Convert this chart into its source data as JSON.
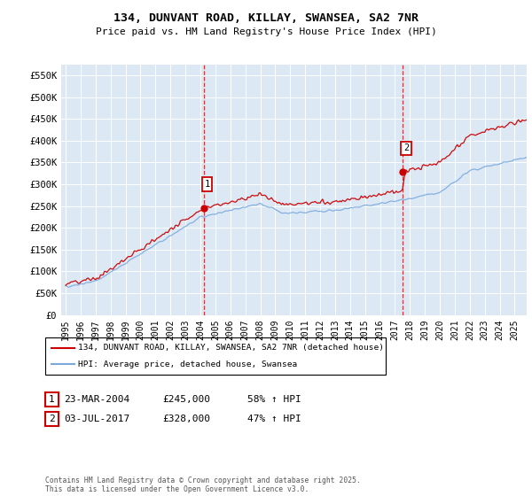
{
  "title": "134, DUNVANT ROAD, KILLAY, SWANSEA, SA2 7NR",
  "subtitle": "Price paid vs. HM Land Registry's House Price Index (HPI)",
  "ylabel_ticks": [
    "£0",
    "£50K",
    "£100K",
    "£150K",
    "£200K",
    "£250K",
    "£300K",
    "£350K",
    "£400K",
    "£450K",
    "£500K",
    "£550K"
  ],
  "ytick_values": [
    0,
    50000,
    100000,
    150000,
    200000,
    250000,
    300000,
    350000,
    400000,
    450000,
    500000,
    550000
  ],
  "ylim": [
    0,
    575000
  ],
  "xlim_start": 1994.7,
  "xlim_end": 2025.8,
  "legend_label_red": "134, DUNVANT ROAD, KILLAY, SWANSEA, SA2 7NR (detached house)",
  "legend_label_blue": "HPI: Average price, detached house, Swansea",
  "red_color": "#cc0000",
  "blue_color": "#7aaadd",
  "marker1_date": 2004.21,
  "marker1_price": 245000,
  "marker2_date": 2017.5,
  "marker2_price": 328000,
  "footer": "Contains HM Land Registry data © Crown copyright and database right 2025.\nThis data is licensed under the Open Government Licence v3.0.",
  "background_color": "#ffffff",
  "plot_bg_color": "#dde8f5",
  "grid_color": "#ffffff",
  "dashed_line_color": "#cc0000",
  "ann1_date": "23-MAR-2004",
  "ann1_price": "£245,000",
  "ann1_hpi": "58% ↑ HPI",
  "ann2_date": "03-JUL-2017",
  "ann2_price": "£328,000",
  "ann2_hpi": "47% ↑ HPI"
}
